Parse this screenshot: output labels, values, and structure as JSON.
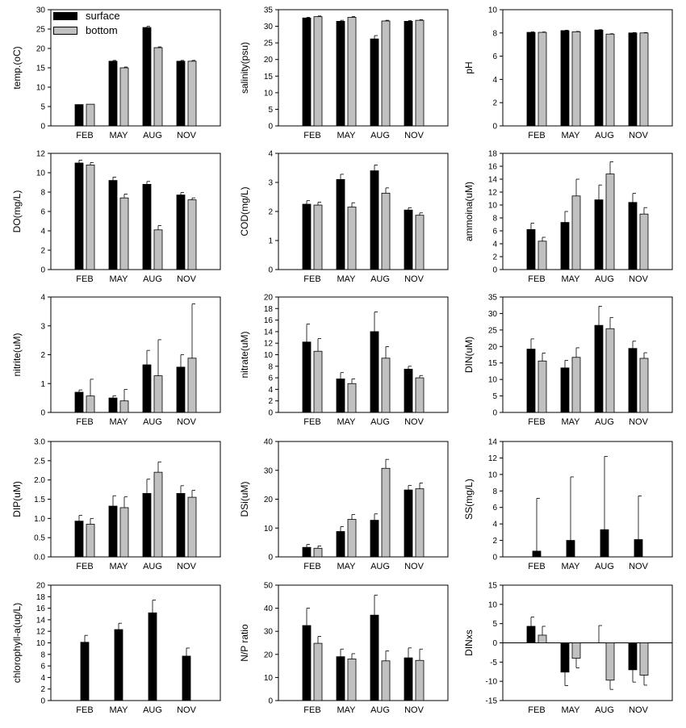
{
  "legend": [
    {
      "label": "surface",
      "color": "#000000"
    },
    {
      "label": "bottom",
      "color": "#c0c0c0"
    }
  ],
  "chart_data": [
    {
      "type": "bar",
      "ylabel": "temp.(oC)",
      "categories": [
        "FEB",
        "MAY",
        "AUG",
        "NOV"
      ],
      "ylim": [
        0,
        30
      ],
      "yticks": [
        0,
        5,
        10,
        15,
        20,
        25,
        30
      ],
      "series": [
        {
          "name": "surface",
          "values": [
            5.5,
            16.7,
            25.4,
            16.7
          ],
          "errors": [
            0,
            0.2,
            0.3,
            0.2
          ]
        },
        {
          "name": "bottom",
          "values": [
            5.6,
            15.0,
            20.2,
            16.7
          ],
          "errors": [
            0,
            0.2,
            0.2,
            0.2
          ]
        }
      ]
    },
    {
      "type": "bar",
      "ylabel": "salinity(psu)",
      "categories": [
        "FEB",
        "MAY",
        "AUG",
        "NOV"
      ],
      "ylim": [
        0,
        35
      ],
      "yticks": [
        0,
        5,
        10,
        15,
        20,
        25,
        30,
        35
      ],
      "series": [
        {
          "name": "surface",
          "values": [
            32.5,
            31.5,
            26.2,
            31.5
          ],
          "errors": [
            0.2,
            0.3,
            1.0,
            0.2
          ]
        },
        {
          "name": "bottom",
          "values": [
            32.9,
            32.7,
            31.6,
            31.8
          ],
          "errors": [
            0.2,
            0.2,
            0.2,
            0.2
          ]
        }
      ]
    },
    {
      "type": "bar",
      "ylabel": "pH",
      "categories": [
        "FEB",
        "MAY",
        "AUG",
        "NOV"
      ],
      "ylim": [
        0,
        10
      ],
      "yticks": [
        0,
        2,
        4,
        6,
        8,
        10
      ],
      "series": [
        {
          "name": "surface",
          "values": [
            8.05,
            8.2,
            8.25,
            8.0
          ],
          "errors": [
            0.04,
            0.03,
            0.03,
            0.03
          ]
        },
        {
          "name": "bottom",
          "values": [
            8.05,
            8.1,
            7.9,
            8.0
          ],
          "errors": [
            0.03,
            0.03,
            0.03,
            0.03
          ]
        }
      ]
    },
    {
      "type": "bar",
      "ylabel": "DO(mg/L)",
      "categories": [
        "FEB",
        "MAY",
        "AUG",
        "NOV"
      ],
      "ylim": [
        0,
        12
      ],
      "yticks": [
        0,
        2,
        4,
        6,
        8,
        10,
        12
      ],
      "series": [
        {
          "name": "surface",
          "values": [
            11.0,
            9.2,
            8.8,
            7.7
          ],
          "errors": [
            0.3,
            0.35,
            0.3,
            0.25
          ]
        },
        {
          "name": "bottom",
          "values": [
            10.8,
            7.4,
            4.1,
            7.2
          ],
          "errors": [
            0.25,
            0.4,
            0.45,
            0.2
          ]
        }
      ]
    },
    {
      "type": "bar",
      "ylabel": "COD(mg/L)",
      "categories": [
        "FEB",
        "MAY",
        "AUG",
        "NOV"
      ],
      "ylim": [
        0,
        4
      ],
      "yticks": [
        0,
        1,
        2,
        3,
        4
      ],
      "series": [
        {
          "name": "surface",
          "values": [
            2.25,
            3.1,
            3.4,
            2.05
          ],
          "errors": [
            0.12,
            0.18,
            0.2,
            0.08
          ]
        },
        {
          "name": "bottom",
          "values": [
            2.22,
            2.15,
            2.63,
            1.87
          ],
          "errors": [
            0.1,
            0.15,
            0.18,
            0.08
          ]
        }
      ]
    },
    {
      "type": "bar",
      "ylabel": "ammoina(uM)",
      "categories": [
        "FEB",
        "MAY",
        "AUG",
        "NOV"
      ],
      "ylim": [
        0,
        18
      ],
      "yticks": [
        0,
        2,
        4,
        6,
        8,
        10,
        12,
        14,
        16,
        18
      ],
      "series": [
        {
          "name": "surface",
          "values": [
            6.2,
            7.3,
            10.8,
            10.4
          ],
          "errors": [
            1.0,
            1.7,
            2.3,
            1.4
          ]
        },
        {
          "name": "bottom",
          "values": [
            4.4,
            11.4,
            14.8,
            8.6
          ],
          "errors": [
            0.6,
            2.6,
            1.9,
            1.0
          ]
        }
      ]
    },
    {
      "type": "bar",
      "ylabel": "nitrite(uM)",
      "categories": [
        "FEB",
        "MAY",
        "AUG",
        "NOV"
      ],
      "ylim": [
        0,
        4
      ],
      "yticks": [
        0,
        1,
        2,
        3,
        4
      ],
      "series": [
        {
          "name": "surface",
          "values": [
            0.7,
            0.5,
            1.65,
            1.57
          ],
          "errors": [
            0.08,
            0.08,
            0.5,
            0.43
          ]
        },
        {
          "name": "bottom",
          "values": [
            0.57,
            0.4,
            1.27,
            1.88
          ],
          "errors": [
            0.58,
            0.4,
            1.25,
            1.88
          ]
        }
      ]
    },
    {
      "type": "bar",
      "ylabel": "nitrate(uM)",
      "categories": [
        "FEB",
        "MAY",
        "AUG",
        "NOV"
      ],
      "ylim": [
        0,
        20
      ],
      "yticks": [
        0,
        2,
        4,
        6,
        8,
        10,
        12,
        14,
        16,
        18,
        20
      ],
      "series": [
        {
          "name": "surface",
          "values": [
            12.2,
            5.8,
            14.0,
            7.5
          ],
          "errors": [
            3.1,
            1.1,
            3.4,
            0.5
          ]
        },
        {
          "name": "bottom",
          "values": [
            10.6,
            5.0,
            9.4,
            6.0
          ],
          "errors": [
            2.2,
            0.8,
            2.0,
            0.4
          ]
        }
      ]
    },
    {
      "type": "bar",
      "ylabel": "DIN(uM)",
      "categories": [
        "FEB",
        "MAY",
        "AUG",
        "NOV"
      ],
      "ylim": [
        0,
        35
      ],
      "yticks": [
        0,
        5,
        10,
        15,
        20,
        25,
        30,
        35
      ],
      "series": [
        {
          "name": "surface",
          "values": [
            19.2,
            13.5,
            26.4,
            19.4
          ],
          "errors": [
            3.1,
            2.3,
            5.8,
            2.2
          ]
        },
        {
          "name": "bottom",
          "values": [
            15.6,
            16.7,
            25.4,
            16.4
          ],
          "errors": [
            2.4,
            2.9,
            3.4,
            1.7
          ]
        }
      ]
    },
    {
      "type": "bar",
      "ylabel": "DIP(uM)",
      "categories": [
        "FEB",
        "MAY",
        "AUG",
        "NOV"
      ],
      "ylim": [
        0,
        3
      ],
      "yticks": [
        0,
        0.5,
        1,
        1.5,
        2,
        2.5,
        3
      ],
      "ytick_labels": [
        "0.0",
        "0.5",
        "1.0",
        "1.5",
        "2.0",
        "2.5",
        "3.0"
      ],
      "series": [
        {
          "name": "surface",
          "values": [
            0.93,
            1.32,
            1.65,
            1.65
          ],
          "errors": [
            0.15,
            0.27,
            0.37,
            0.2
          ]
        },
        {
          "name": "bottom",
          "values": [
            0.85,
            1.28,
            2.2,
            1.55
          ],
          "errors": [
            0.15,
            0.28,
            0.27,
            0.18
          ]
        }
      ]
    },
    {
      "type": "bar",
      "ylabel": "DSi(uM)",
      "categories": [
        "FEB",
        "MAY",
        "AUG",
        "NOV"
      ],
      "ylim": [
        0,
        40
      ],
      "yticks": [
        0,
        10,
        20,
        30,
        40
      ],
      "series": [
        {
          "name": "surface",
          "values": [
            3.3,
            8.8,
            12.7,
            23.2
          ],
          "errors": [
            1.0,
            1.7,
            2.2,
            1.6
          ]
        },
        {
          "name": "bottom",
          "values": [
            3.0,
            13.0,
            30.7,
            23.6
          ],
          "errors": [
            0.8,
            1.7,
            3.1,
            2.0
          ]
        }
      ]
    },
    {
      "type": "bar",
      "ylabel": "SS(mg/L)",
      "categories": [
        "FEB",
        "MAY",
        "AUG",
        "NOV"
      ],
      "ylim": [
        0,
        14
      ],
      "yticks": [
        0,
        2,
        4,
        6,
        8,
        10,
        12,
        14
      ],
      "series": [
        {
          "name": "surface",
          "values": [
            0.7,
            2.0,
            3.3,
            2.1
          ],
          "errors": [
            6.4,
            7.7,
            8.9,
            5.3
          ]
        }
      ]
    },
    {
      "type": "bar",
      "ylabel": "chlorophyll-a(ug/L)",
      "categories": [
        "FEB",
        "MAY",
        "AUG",
        "NOV"
      ],
      "ylim": [
        0,
        20
      ],
      "yticks": [
        0,
        2,
        4,
        6,
        8,
        10,
        12,
        14,
        16,
        18,
        20
      ],
      "series": [
        {
          "name": "surface",
          "values": [
            10.1,
            12.3,
            15.2,
            7.7
          ],
          "errors": [
            1.2,
            1.1,
            2.2,
            1.4
          ]
        }
      ]
    },
    {
      "type": "bar",
      "ylabel": "N/P ratio",
      "categories": [
        "FEB",
        "MAY",
        "AUG",
        "NOV"
      ],
      "ylim": [
        0,
        50
      ],
      "yticks": [
        0,
        10,
        20,
        30,
        40,
        50
      ],
      "series": [
        {
          "name": "surface",
          "values": [
            32.5,
            19.0,
            37.0,
            18.5
          ],
          "errors": [
            7.5,
            3.3,
            8.7,
            4.3
          ]
        },
        {
          "name": "bottom",
          "values": [
            24.8,
            18.0,
            17.2,
            17.4
          ],
          "errors": [
            3.0,
            2.3,
            4.3,
            4.9
          ]
        }
      ]
    },
    {
      "type": "bar",
      "ylabel": "DINxs",
      "categories": [
        "FEB",
        "MAY",
        "AUG",
        "NOV"
      ],
      "ylim": [
        -15,
        15
      ],
      "yticks": [
        -15,
        -10,
        -5,
        0,
        5,
        10,
        15
      ],
      "series": [
        {
          "name": "surface",
          "values": [
            4.3,
            -7.6,
            0,
            -7.0
          ],
          "errors": [
            2.4,
            3.5,
            4.5,
            3.2
          ]
        },
        {
          "name": "bottom",
          "values": [
            2.0,
            -4.0,
            -9.7,
            -8.4
          ],
          "errors": [
            2.3,
            2.5,
            2.4,
            2.6
          ]
        }
      ]
    }
  ]
}
